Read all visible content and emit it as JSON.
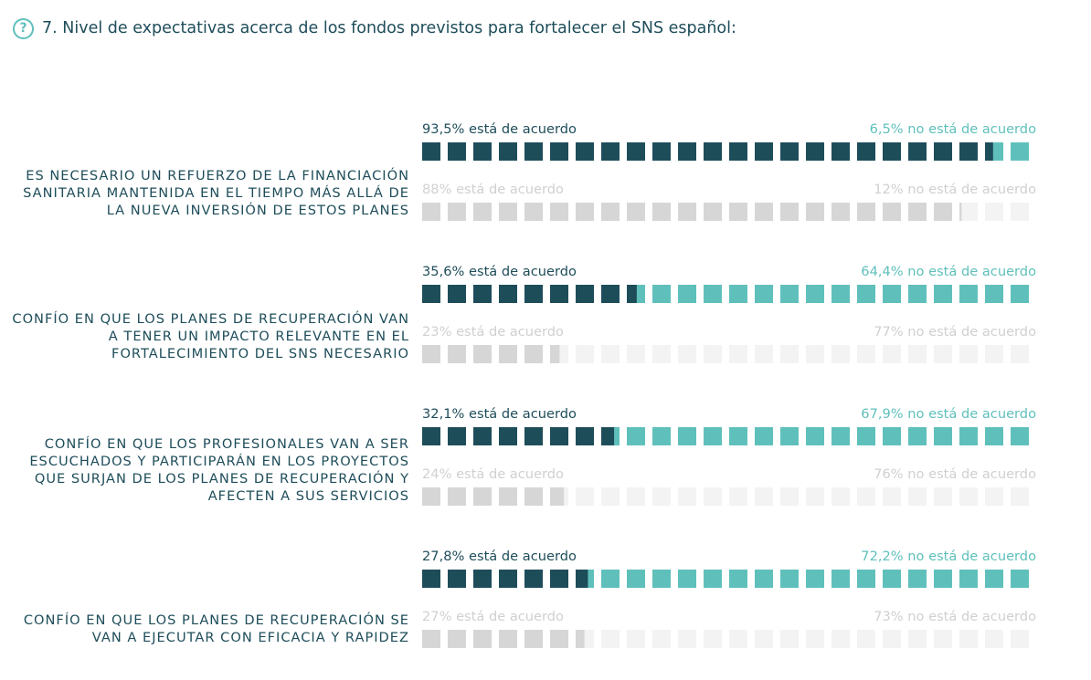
{
  "title": "7. Nivel de expectativas acerca de los fondos previstos para fortalecer el SNS español:",
  "icon": "help-circle-icon",
  "colors": {
    "agree": "#1e4d5a",
    "disagree": "#5fc0bb",
    "past_agree": "#d6d6d6",
    "past_disagree": "#f3f3f3",
    "past_text": "#d0d0d0",
    "title": "#1e4d5a"
  },
  "chart_data": {
    "type": "bar",
    "bar_style": "waffle-stacked-horizontal",
    "max_value": 100,
    "series": [
      {
        "name": "está de acuerdo",
        "role": "agree"
      },
      {
        "name": "no está de acuerdo",
        "role": "disagree"
      }
    ],
    "items": [
      {
        "label": "Es necesario un refuerzo de la financiación sanitaria mantenida en el tiempo más allá de la nueva inversión de estos planes",
        "bars": [
          {
            "period": "current",
            "agree": 93.5,
            "disagree": 6.5,
            "agree_text": "93,5% está de acuerdo",
            "disagree_text": "6,5% no está de acuerdo"
          },
          {
            "period": "previous",
            "agree": 88,
            "disagree": 12,
            "agree_text": "88% está de acuerdo",
            "disagree_text": "12% no está de acuerdo"
          }
        ]
      },
      {
        "label": "Confío en que los planes de recuperación van a tener un impacto relevante en el fortalecimiento del SNS necesario",
        "bars": [
          {
            "period": "current",
            "agree": 35.6,
            "disagree": 64.4,
            "agree_text": "35,6% está de acuerdo",
            "disagree_text": "64,4% no está de acuerdo"
          },
          {
            "period": "previous",
            "agree": 23,
            "disagree": 77,
            "agree_text": "23% está de acuerdo",
            "disagree_text": "77% no está de acuerdo"
          }
        ]
      },
      {
        "label": "Confío en que los profesionales van a ser escuchados y participarán en los proyectos que surjan de los planes de recuperación y afecten a sus servicios",
        "bars": [
          {
            "period": "current",
            "agree": 32.1,
            "disagree": 67.9,
            "agree_text": "32,1% está de acuerdo",
            "disagree_text": "67,9% no está de acuerdo"
          },
          {
            "period": "previous",
            "agree": 24,
            "disagree": 76,
            "agree_text": "24% está de acuerdo",
            "disagree_text": "76% no está de acuerdo"
          }
        ]
      },
      {
        "label": "Confío en que los planes de recuperación se van a ejecutar con eficacia y rapidez",
        "bars": [
          {
            "period": "current",
            "agree": 27.8,
            "disagree": 72.2,
            "agree_text": "27,8% está de acuerdo",
            "disagree_text": "72,2% no está de acuerdo"
          },
          {
            "period": "previous",
            "agree": 27,
            "disagree": 73,
            "agree_text": "27% está de acuerdo",
            "disagree_text": "73% no está de acuerdo"
          }
        ]
      }
    ]
  }
}
